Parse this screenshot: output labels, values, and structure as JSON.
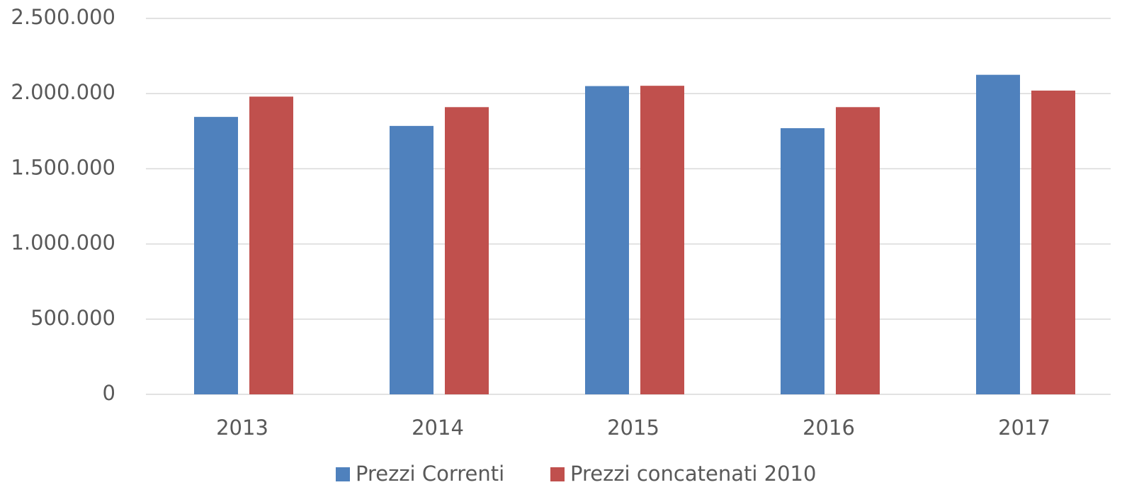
{
  "chart_data": {
    "type": "bar",
    "categories": [
      "2013",
      "2014",
      "2015",
      "2016",
      "2017"
    ],
    "series": [
      {
        "name": "Prezzi Correnti",
        "color": "#4f81bd",
        "values": [
          1845000,
          1785000,
          2050000,
          1770000,
          2125000
        ]
      },
      {
        "name": "Prezzi concatenati 2010",
        "color": "#c0504d",
        "values": [
          1980000,
          1910000,
          2052000,
          1910000,
          2020000
        ]
      }
    ],
    "ylim": [
      0,
      2500000
    ],
    "yticks": [
      0,
      {
        "value": 500000,
        "label": "500.000"
      },
      {
        "value": 1000000,
        "label": "1.000.000"
      },
      {
        "value": 1500000,
        "label": "1.500.000"
      },
      {
        "value": 2000000,
        "label": "2.000.000"
      },
      {
        "value": 2500000,
        "label": "2.500.000"
      }
    ],
    "grid": true,
    "legend": "bottom"
  }
}
